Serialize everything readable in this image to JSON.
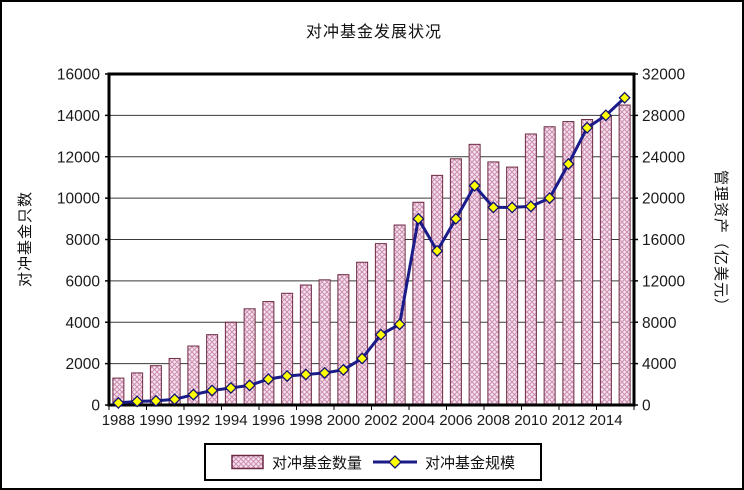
{
  "figure": {
    "title": "对冲基金发展状况"
  },
  "chart_data": {
    "type": "bar",
    "title": "对冲基金发展状况",
    "categories": [
      "1988",
      "1989",
      "1990",
      "1991",
      "1992",
      "1993",
      "1994",
      "1995",
      "1996",
      "1997",
      "1998",
      "1999",
      "2000",
      "2001",
      "2002",
      "2003",
      "2004",
      "2005",
      "2006",
      "2007",
      "2008",
      "2009",
      "2010",
      "2011",
      "2012",
      "2013",
      "2014",
      "2015"
    ],
    "series": [
      {
        "name": "对冲基金数量",
        "type": "bar",
        "axis": "left",
        "values": [
          1300,
          1550,
          1900,
          2250,
          2850,
          3400,
          4000,
          4650,
          5000,
          5400,
          5800,
          6050,
          6300,
          6900,
          7800,
          8700,
          9800,
          11100,
          11900,
          12600,
          11750,
          11500,
          13100,
          13450,
          13700,
          13800,
          13950,
          14500
        ]
      },
      {
        "name": "对冲基金规模",
        "type": "line",
        "axis": "right",
        "values": [
          200,
          350,
          400,
          550,
          1000,
          1400,
          1650,
          1900,
          2500,
          2800,
          2950,
          3100,
          3400,
          4500,
          6800,
          7800,
          18000,
          14900,
          18000,
          21200,
          19100,
          19100,
          19200,
          20000,
          23300,
          26800,
          28000,
          29700
        ]
      }
    ],
    "left_axis": {
      "label": "对冲基金只数",
      "min": 0,
      "max": 16000,
      "step": 2000
    },
    "right_axis": {
      "label": "管理资产（亿美元）",
      "min": 0,
      "max": 32000,
      "step": 4000
    },
    "x_axis": {
      "tick_label_interval": 2,
      "tick_labels": [
        "1988",
        "1990",
        "1992",
        "1994",
        "1996",
        "1998",
        "2000",
        "2002",
        "2004",
        "2006",
        "2008",
        "2010",
        "2012",
        "2014"
      ]
    },
    "legend": {
      "position": "bottom-center",
      "entries": [
        {
          "label": "对冲基金数量",
          "marker": "patterned-bar-swatch"
        },
        {
          "label": "对冲基金规模",
          "marker": "line-with-diamond-marker"
        }
      ]
    },
    "grid": true,
    "colors": {
      "bar_fill": "#f8e3ee",
      "bar_pattern": "#cb8fb1",
      "bar_border": "#6d2b44",
      "line": "#1b1b8a",
      "marker_fill": "#ffff00",
      "marker_border": "#14146e",
      "plot_border": "#000000",
      "grid": "#3a3a3a",
      "text": "#1a1a1a"
    }
  }
}
